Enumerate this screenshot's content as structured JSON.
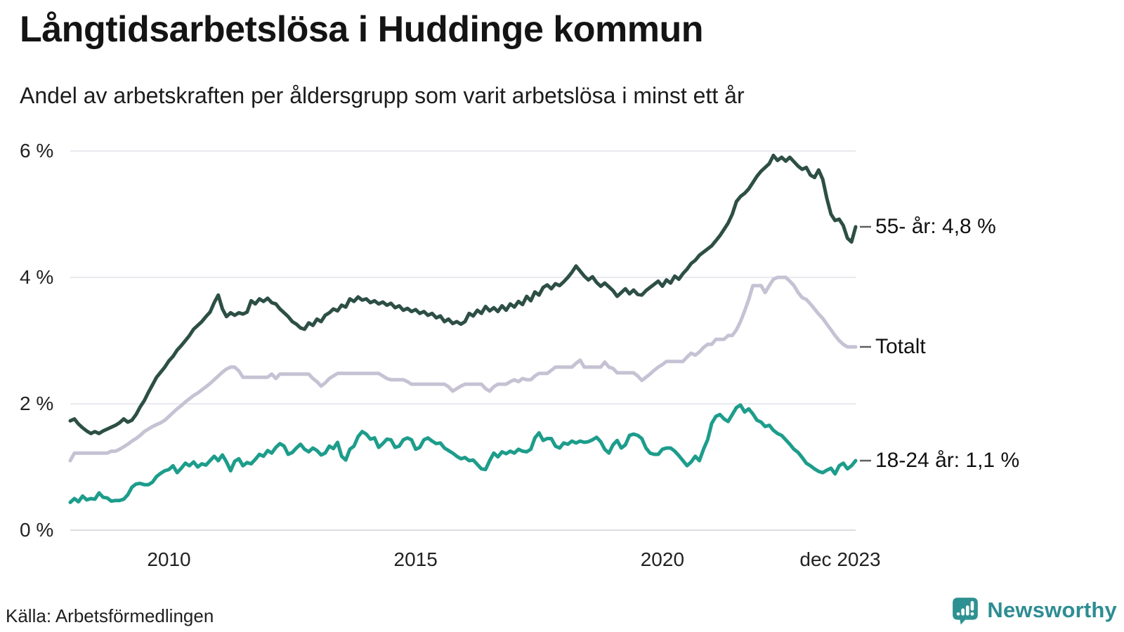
{
  "header": {
    "title": "Långtidsarbetslösa i Huddinge kommun",
    "subtitle": "Andel av arbetskraften per åldersgrupp som varit arbetslösa i minst ett år"
  },
  "footer": {
    "source": "Källa: Arbetsförmedlingen",
    "brand": "Newsworthy"
  },
  "colors": {
    "series_55_plus": "#2d4f45",
    "series_total": "#c6c2d4",
    "series_18_24": "#1d9d8b",
    "gridline": "#e9e9ef",
    "baseline": "#dcdce2",
    "end_label_dash": "#5f5f5f",
    "brand_teal": "#2e9191",
    "text": "#1c1c1c"
  },
  "chart_data": {
    "type": "line",
    "title": "Långtidsarbetslösa i Huddinge kommun",
    "subtitle": "Andel av arbetskraften per åldersgrupp som varit arbetslösa i minst ett år",
    "unit": "%",
    "x_start": "2008-01",
    "x_end": "2023-12",
    "points_per_series": 192,
    "ylim": [
      0,
      6
    ],
    "grid": true,
    "legend_position": "end-of-line",
    "yticks": [
      {
        "value": 0,
        "label": "0 %"
      },
      {
        "value": 2,
        "label": "2 %"
      },
      {
        "value": 4,
        "label": "4 %"
      },
      {
        "value": 6,
        "label": "6 %"
      }
    ],
    "xticks": [
      {
        "month_index": 24,
        "label": "2010"
      },
      {
        "month_index": 84,
        "label": "2015"
      },
      {
        "month_index": 144,
        "label": "2020"
      },
      {
        "month_index": 191,
        "label": "dec 2023"
      }
    ],
    "series": [
      {
        "id": "55-plus",
        "name": "55- år",
        "end_label": "55- år: 4,8 %",
        "last_value": 4.8,
        "color": "#2d4f45",
        "values": [
          1.73,
          1.76,
          1.68,
          1.62,
          1.57,
          1.53,
          1.56,
          1.53,
          1.57,
          1.6,
          1.63,
          1.66,
          1.7,
          1.76,
          1.71,
          1.74,
          1.83,
          1.95,
          2.05,
          2.18,
          2.3,
          2.42,
          2.5,
          2.58,
          2.68,
          2.75,
          2.85,
          2.92,
          3.0,
          3.08,
          3.18,
          3.24,
          3.3,
          3.38,
          3.45,
          3.6,
          3.72,
          3.5,
          3.38,
          3.44,
          3.4,
          3.44,
          3.42,
          3.45,
          3.63,
          3.58,
          3.66,
          3.62,
          3.67,
          3.6,
          3.58,
          3.5,
          3.44,
          3.38,
          3.3,
          3.26,
          3.2,
          3.18,
          3.28,
          3.24,
          3.34,
          3.3,
          3.4,
          3.44,
          3.5,
          3.47,
          3.56,
          3.53,
          3.66,
          3.62,
          3.69,
          3.64,
          3.66,
          3.6,
          3.63,
          3.58,
          3.61,
          3.56,
          3.59,
          3.52,
          3.55,
          3.48,
          3.51,
          3.46,
          3.49,
          3.43,
          3.46,
          3.4,
          3.43,
          3.36,
          3.39,
          3.3,
          3.34,
          3.27,
          3.3,
          3.26,
          3.3,
          3.43,
          3.39,
          3.48,
          3.43,
          3.54,
          3.47,
          3.52,
          3.46,
          3.55,
          3.48,
          3.58,
          3.53,
          3.62,
          3.57,
          3.7,
          3.63,
          3.77,
          3.72,
          3.84,
          3.88,
          3.82,
          3.9,
          3.87,
          3.93,
          4.0,
          4.08,
          4.18,
          4.1,
          4.02,
          3.96,
          4.01,
          3.92,
          3.86,
          3.91,
          3.85,
          3.79,
          3.7,
          3.76,
          3.82,
          3.74,
          3.8,
          3.73,
          3.72,
          3.79,
          3.84,
          3.89,
          3.94,
          3.86,
          3.96,
          3.91,
          4.02,
          3.97,
          4.06,
          4.13,
          4.22,
          4.27,
          4.35,
          4.4,
          4.45,
          4.5,
          4.58,
          4.66,
          4.76,
          4.86,
          5.0,
          5.2,
          5.28,
          5.33,
          5.4,
          5.5,
          5.6,
          5.68,
          5.74,
          5.8,
          5.93,
          5.85,
          5.9,
          5.84,
          5.9,
          5.83,
          5.76,
          5.71,
          5.74,
          5.62,
          5.58,
          5.7,
          5.55,
          5.25,
          5.0,
          4.9,
          4.92,
          4.82,
          4.62,
          4.56,
          4.8
        ]
      },
      {
        "id": "total",
        "name": "Totalt",
        "end_label": "Totalt",
        "last_value": 2.9,
        "color": "#c6c2d4",
        "values": [
          1.1,
          1.22,
          1.22,
          1.22,
          1.22,
          1.22,
          1.22,
          1.22,
          1.22,
          1.22,
          1.25,
          1.25,
          1.28,
          1.32,
          1.36,
          1.41,
          1.45,
          1.5,
          1.56,
          1.6,
          1.64,
          1.67,
          1.7,
          1.74,
          1.8,
          1.86,
          1.92,
          1.97,
          2.03,
          2.08,
          2.13,
          2.17,
          2.22,
          2.27,
          2.32,
          2.38,
          2.44,
          2.5,
          2.55,
          2.58,
          2.58,
          2.52,
          2.42,
          2.42,
          2.42,
          2.42,
          2.42,
          2.42,
          2.42,
          2.47,
          2.4,
          2.47,
          2.47,
          2.47,
          2.47,
          2.47,
          2.47,
          2.47,
          2.47,
          2.4,
          2.35,
          2.28,
          2.33,
          2.4,
          2.44,
          2.48,
          2.48,
          2.48,
          2.48,
          2.48,
          2.48,
          2.48,
          2.48,
          2.48,
          2.48,
          2.48,
          2.44,
          2.4,
          2.38,
          2.38,
          2.38,
          2.38,
          2.35,
          2.31,
          2.31,
          2.31,
          2.31,
          2.31,
          2.31,
          2.31,
          2.31,
          2.31,
          2.27,
          2.2,
          2.24,
          2.28,
          2.31,
          2.31,
          2.31,
          2.31,
          2.31,
          2.24,
          2.2,
          2.27,
          2.31,
          2.31,
          2.31,
          2.35,
          2.38,
          2.35,
          2.4,
          2.38,
          2.38,
          2.44,
          2.48,
          2.48,
          2.48,
          2.53,
          2.58,
          2.58,
          2.58,
          2.58,
          2.58,
          2.64,
          2.69,
          2.58,
          2.58,
          2.58,
          2.58,
          2.58,
          2.66,
          2.58,
          2.56,
          2.49,
          2.49,
          2.49,
          2.49,
          2.49,
          2.44,
          2.37,
          2.42,
          2.47,
          2.53,
          2.58,
          2.62,
          2.67,
          2.67,
          2.67,
          2.67,
          2.67,
          2.74,
          2.8,
          2.77,
          2.82,
          2.89,
          2.94,
          2.94,
          3.02,
          3.02,
          3.02,
          3.08,
          3.08,
          3.17,
          3.3,
          3.47,
          3.65,
          3.87,
          3.87,
          3.87,
          3.76,
          3.87,
          3.97,
          4.0,
          4.0,
          4.0,
          3.94,
          3.87,
          3.76,
          3.68,
          3.65,
          3.58,
          3.5,
          3.42,
          3.35,
          3.26,
          3.17,
          3.08,
          3.0,
          2.94,
          2.9,
          2.9,
          2.9
        ]
      },
      {
        "id": "18-24",
        "name": "18-24 år",
        "end_label": "18-24 år: 1,1 %",
        "last_value": 1.1,
        "color": "#1d9d8b",
        "values": [
          0.44,
          0.5,
          0.45,
          0.54,
          0.48,
          0.5,
          0.49,
          0.59,
          0.52,
          0.51,
          0.46,
          0.47,
          0.47,
          0.49,
          0.56,
          0.68,
          0.73,
          0.74,
          0.72,
          0.72,
          0.76,
          0.85,
          0.9,
          0.94,
          0.96,
          1.02,
          0.91,
          0.98,
          1.06,
          1.02,
          1.08,
          1.0,
          1.05,
          1.03,
          1.1,
          1.17,
          1.1,
          1.19,
          1.08,
          0.94,
          1.09,
          1.13,
          1.02,
          1.07,
          1.05,
          1.12,
          1.2,
          1.17,
          1.26,
          1.22,
          1.31,
          1.37,
          1.33,
          1.2,
          1.23,
          1.3,
          1.36,
          1.28,
          1.24,
          1.3,
          1.26,
          1.19,
          1.22,
          1.33,
          1.29,
          1.39,
          1.17,
          1.11,
          1.28,
          1.33,
          1.48,
          1.56,
          1.52,
          1.44,
          1.46,
          1.31,
          1.37,
          1.44,
          1.43,
          1.31,
          1.33,
          1.43,
          1.46,
          1.43,
          1.28,
          1.31,
          1.43,
          1.46,
          1.41,
          1.37,
          1.38,
          1.3,
          1.26,
          1.22,
          1.17,
          1.13,
          1.15,
          1.1,
          1.11,
          1.04,
          0.97,
          0.96,
          1.1,
          1.22,
          1.16,
          1.24,
          1.21,
          1.25,
          1.22,
          1.28,
          1.25,
          1.24,
          1.28,
          1.46,
          1.54,
          1.42,
          1.45,
          1.45,
          1.33,
          1.3,
          1.38,
          1.36,
          1.41,
          1.38,
          1.41,
          1.39,
          1.4,
          1.43,
          1.47,
          1.4,
          1.28,
          1.22,
          1.35,
          1.42,
          1.3,
          1.35,
          1.5,
          1.52,
          1.5,
          1.45,
          1.3,
          1.22,
          1.2,
          1.2,
          1.28,
          1.3,
          1.3,
          1.25,
          1.18,
          1.1,
          1.02,
          1.08,
          1.17,
          1.1,
          1.28,
          1.43,
          1.69,
          1.8,
          1.83,
          1.76,
          1.72,
          1.83,
          1.94,
          1.98,
          1.87,
          1.92,
          1.84,
          1.74,
          1.71,
          1.64,
          1.66,
          1.58,
          1.53,
          1.5,
          1.43,
          1.36,
          1.28,
          1.23,
          1.15,
          1.06,
          1.02,
          0.97,
          0.93,
          0.91,
          0.95,
          0.98,
          0.89,
          1.02,
          1.06,
          0.97,
          1.02,
          1.1
        ]
      }
    ]
  }
}
